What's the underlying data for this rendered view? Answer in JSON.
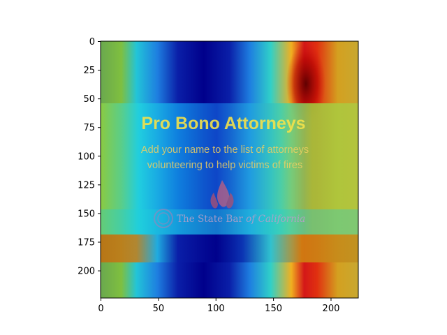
{
  "chart_data": {
    "type": "heatmap",
    "title": "",
    "xlabel": "",
    "ylabel": "",
    "xlim": [
      0,
      224
    ],
    "ylim": [
      224,
      0
    ],
    "x_ticks": [
      0,
      50,
      100,
      150,
      200
    ],
    "y_ticks": [
      0,
      25,
      50,
      75,
      100,
      125,
      150,
      175,
      200
    ],
    "colormap": "jet",
    "grid": false,
    "legend": "none",
    "overlay": {
      "title": "Pro Bono Attorneys",
      "subtitle_line1": "Add your name to the list of attorneys",
      "subtitle_line2": "volunteering to help victims of fires",
      "brand_text": "The State Bar",
      "brand_text_italic": "of California"
    },
    "colors": {
      "banner_title": "#f4e24a",
      "banner_sub": "#f0d060",
      "brand": "#b8a0c8"
    }
  }
}
